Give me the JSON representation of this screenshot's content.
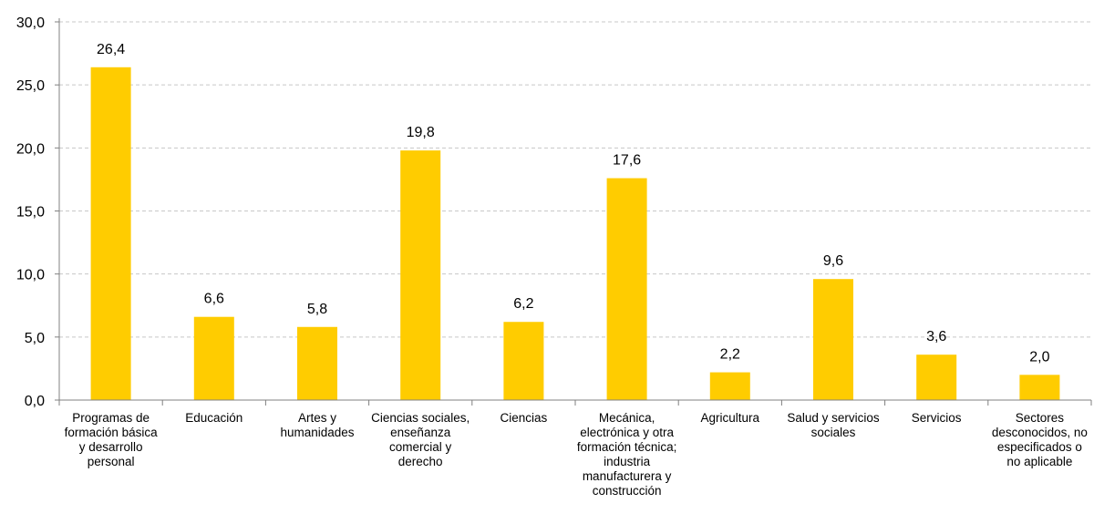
{
  "chart_data": {
    "type": "bar",
    "categories": [
      "Programas de formación básica y desarrollo personal",
      "Educación",
      "Artes y humanidades",
      "Ciencias sociales, enseñanza comercial y derecho",
      "Ciencias",
      "Mecánica, electrónica y otra formación técnica; industria manufacturera y construcción",
      "Agricultura",
      "Salud y servicios sociales",
      "Servicios",
      "Sectores desconocidos, no especificados o no aplicable"
    ],
    "values": [
      26.4,
      6.6,
      5.8,
      19.8,
      6.2,
      17.6,
      2.2,
      9.6,
      3.6,
      2.0
    ],
    "value_labels": [
      "26,4",
      "6,6",
      "5,8",
      "19,8",
      "6,2",
      "17,6",
      "2,2",
      "9,6",
      "3,6",
      "2,0"
    ],
    "yticks": [
      0,
      5,
      10,
      15,
      20,
      25,
      30
    ],
    "ytick_labels": [
      "0,0",
      "5,0",
      "10,0",
      "15,0",
      "20,0",
      "25,0",
      "30,0"
    ],
    "ylim": [
      0,
      30
    ],
    "grid": true,
    "legend": "none",
    "title": "",
    "xlabel": "",
    "ylabel": "",
    "bar_color": "#FFCC00",
    "grid_color": "#c8c8c8",
    "axis_color": "#808080"
  }
}
